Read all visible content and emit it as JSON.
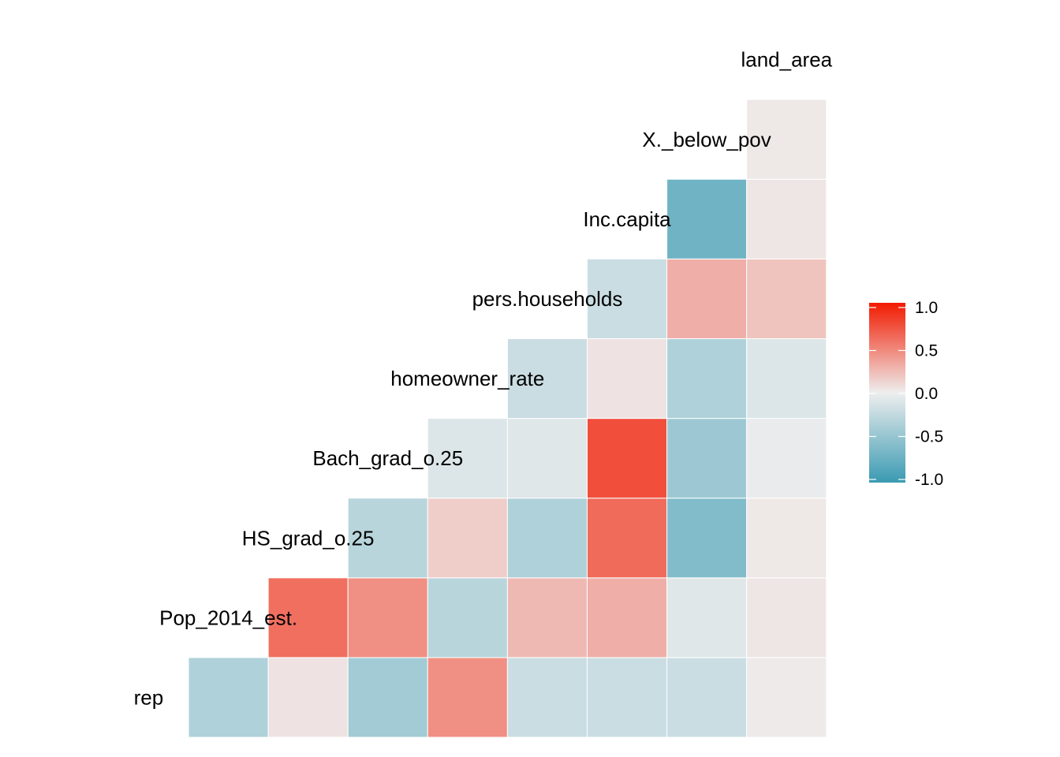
{
  "chart_data": {
    "type": "heatmap",
    "title": "",
    "variables": [
      "rep",
      "Pop_2014_est.",
      "HS_grad_o.25",
      "Bach_grad_o.25",
      "homeowner_rate",
      "pers.households",
      "Inc.capita",
      "X._below_pov",
      "land_area"
    ],
    "correlations": [
      {
        "row": "Pop_2014_est.",
        "col": "rep",
        "value": -0.35
      },
      {
        "row": "HS_grad_o.25",
        "col": "rep",
        "value": 0.05
      },
      {
        "row": "HS_grad_o.25",
        "col": "Pop_2014_est.",
        "value": 0.6
      },
      {
        "row": "Bach_grad_o.25",
        "col": "rep",
        "value": -0.42
      },
      {
        "row": "Bach_grad_o.25",
        "col": "Pop_2014_est.",
        "value": 0.45
      },
      {
        "row": "Bach_grad_o.25",
        "col": "HS_grad_o.25",
        "value": -0.3
      },
      {
        "row": "homeowner_rate",
        "col": "rep",
        "value": 0.45
      },
      {
        "row": "homeowner_rate",
        "col": "Pop_2014_est.",
        "value": -0.3
      },
      {
        "row": "homeowner_rate",
        "col": "HS_grad_o.25",
        "value": 0.15
      },
      {
        "row": "homeowner_rate",
        "col": "Bach_grad_o.25",
        "value": -0.1
      },
      {
        "row": "pers.households",
        "col": "rep",
        "value": -0.2
      },
      {
        "row": "pers.households",
        "col": "Pop_2014_est.",
        "value": 0.25
      },
      {
        "row": "pers.households",
        "col": "HS_grad_o.25",
        "value": -0.35
      },
      {
        "row": "pers.households",
        "col": "Bach_grad_o.25",
        "value": -0.08
      },
      {
        "row": "pers.households",
        "col": "homeowner_rate",
        "value": -0.2
      },
      {
        "row": "Inc.capita",
        "col": "rep",
        "value": -0.2
      },
      {
        "row": "Inc.capita",
        "col": "Pop_2014_est.",
        "value": 0.3
      },
      {
        "row": "Inc.capita",
        "col": "HS_grad_o.25",
        "value": 0.62
      },
      {
        "row": "Inc.capita",
        "col": "Bach_grad_o.25",
        "value": 0.75
      },
      {
        "row": "Inc.capita",
        "col": "homeowner_rate",
        "value": 0.05
      },
      {
        "row": "Inc.capita",
        "col": "pers.households",
        "value": -0.2
      },
      {
        "row": "X._below_pov",
        "col": "rep",
        "value": -0.2
      },
      {
        "row": "X._below_pov",
        "col": "Pop_2014_est.",
        "value": -0.08
      },
      {
        "row": "X._below_pov",
        "col": "HS_grad_o.25",
        "value": -0.6
      },
      {
        "row": "X._below_pov",
        "col": "Bach_grad_o.25",
        "value": -0.45
      },
      {
        "row": "X._below_pov",
        "col": "homeowner_rate",
        "value": -0.35
      },
      {
        "row": "X._below_pov",
        "col": "pers.households",
        "value": 0.3
      },
      {
        "row": "X._below_pov",
        "col": "Inc.capita",
        "value": -0.7
      },
      {
        "row": "land_area",
        "col": "rep",
        "value": 0.02
      },
      {
        "row": "land_area",
        "col": "Pop_2014_est.",
        "value": 0.04
      },
      {
        "row": "land_area",
        "col": "HS_grad_o.25",
        "value": 0.03
      },
      {
        "row": "land_area",
        "col": "Bach_grad_o.25",
        "value": -0.03
      },
      {
        "row": "land_area",
        "col": "homeowner_rate",
        "value": -0.1
      },
      {
        "row": "land_area",
        "col": "pers.households",
        "value": 0.2
      },
      {
        "row": "land_area",
        "col": "Inc.capita",
        "value": 0.04
      },
      {
        "row": "land_area",
        "col": "X._below_pov",
        "value": 0.03
      }
    ],
    "color_scale": {
      "low": "#3A9AB2",
      "mid": "#EEEEEE",
      "high": "#F21A00",
      "limits": [
        -1.0,
        1.0
      ]
    },
    "legend": {
      "position": "right",
      "ticks": [
        "1.0",
        "0.5",
        "0.0",
        "-0.5",
        "-1.0"
      ]
    }
  }
}
